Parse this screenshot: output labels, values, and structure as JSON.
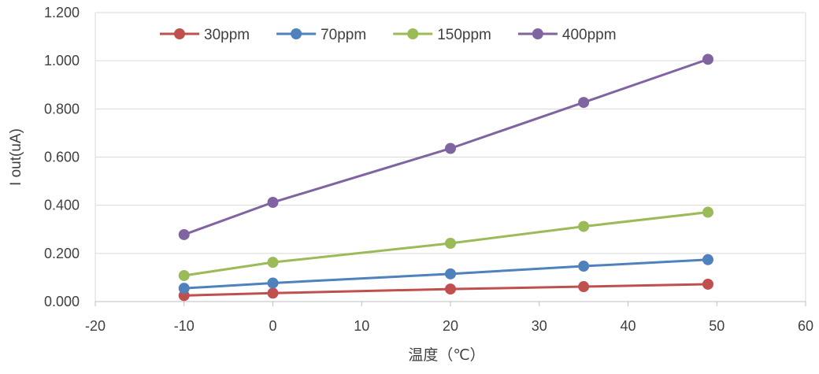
{
  "chart_data": {
    "type": "line",
    "title": "",
    "xlabel": "温度（℃）",
    "ylabel": "I out(uA)",
    "xlim": [
      -20,
      60
    ],
    "ylim": [
      0,
      1.2
    ],
    "xticks": [
      -20,
      -10,
      0,
      10,
      20,
      30,
      40,
      50,
      60
    ],
    "yticks": [
      0,
      0.2,
      0.4,
      0.6,
      0.8,
      1.0,
      1.2
    ],
    "ytick_labels": [
      "0.000",
      "0.200",
      "0.400",
      "0.600",
      "0.800",
      "1.000",
      "1.200"
    ],
    "xtick_labels": [
      "-20",
      "-10",
      "0",
      "10",
      "20",
      "30",
      "40",
      "50",
      "60"
    ],
    "grid": "horizontal",
    "legend": "top",
    "x": [
      -10,
      0,
      20,
      35,
      49
    ],
    "series": [
      {
        "name": "30ppm",
        "color": "#C0504D",
        "values": [
          0.025,
          0.035,
          0.052,
          0.062,
          0.072
        ]
      },
      {
        "name": "70ppm",
        "color": "#4F81BD",
        "values": [
          0.055,
          0.077,
          0.115,
          0.147,
          0.174
        ]
      },
      {
        "name": "150ppm",
        "color": "#9BBB59",
        "values": [
          0.108,
          0.163,
          0.242,
          0.312,
          0.371
        ]
      },
      {
        "name": "400ppm",
        "color": "#8064A2",
        "values": [
          0.278,
          0.412,
          0.636,
          0.827,
          1.006
        ]
      }
    ]
  }
}
